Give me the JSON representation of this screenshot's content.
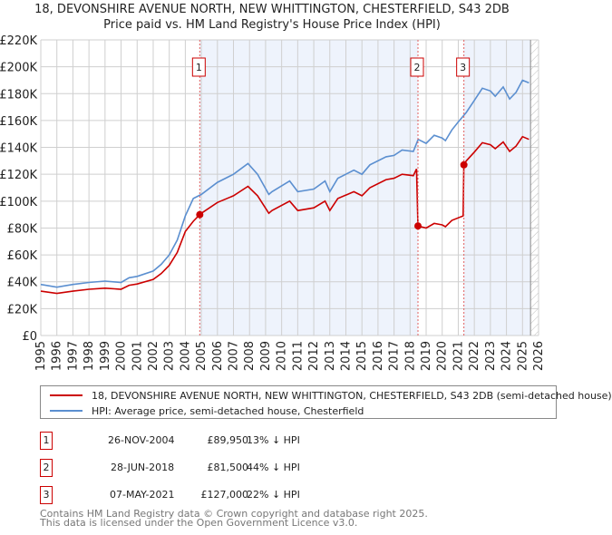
{
  "title": "18, DEVONSHIRE AVENUE NORTH, NEW WHITTINGTON, CHESTERFIELD, S43 2DB",
  "subtitle": "Price paid vs. HM Land Registry's House Price Index (HPI)",
  "colors": {
    "price": "#cc0000",
    "hpi": "#5b8fd0",
    "shade": "#eef3fc"
  },
  "chart_data": {
    "type": "line",
    "xlim": [
      1995,
      2026
    ],
    "ylim": [
      0,
      220000
    ],
    "xticks": [
      1995,
      1996,
      1997,
      1998,
      1999,
      2000,
      2001,
      2002,
      2003,
      2004,
      2005,
      2006,
      2007,
      2008,
      2009,
      2010,
      2011,
      2012,
      2013,
      2014,
      2015,
      2016,
      2017,
      2018,
      2019,
      2020,
      2021,
      2022,
      2023,
      2024,
      2025,
      2026
    ],
    "yticks": [
      {
        "v": 0,
        "label": "£0"
      },
      {
        "v": 20000,
        "label": "£20K"
      },
      {
        "v": 40000,
        "label": "£40K"
      },
      {
        "v": 60000,
        "label": "£60K"
      },
      {
        "v": 80000,
        "label": "£80K"
      },
      {
        "v": 100000,
        "label": "£100K"
      },
      {
        "v": 120000,
        "label": "£120K"
      },
      {
        "v": 140000,
        "label": "£140K"
      },
      {
        "v": 160000,
        "label": "£160K"
      },
      {
        "v": 180000,
        "label": "£180K"
      },
      {
        "v": 200000,
        "label": "£200K"
      },
      {
        "v": 220000,
        "label": "£220K"
      }
    ],
    "grid": true,
    "forecast_hatch_from": 2025.5,
    "series": [
      {
        "name": "18, DEVONSHIRE AVENUE NORTH, NEW WHITTINGTON, CHESTERFIELD, S43 2DB (semi-detached house)",
        "key": "price",
        "x": [
          1995,
          1996,
          1997,
          1998,
          1999,
          2000,
          2000.5,
          2001,
          2002,
          2002.5,
          2003,
          2003.5,
          2004,
          2004.5,
          2004.9,
          2005,
          2006,
          2007,
          2007.9,
          2008.5,
          2009.2,
          2009.4,
          2010.5,
          2011,
          2012,
          2012.7,
          2013,
          2013.5,
          2014.5,
          2015,
          2015.5,
          2016.5,
          2017,
          2017.5,
          2018.2,
          2018.4,
          2018.49,
          2019,
          2019.5,
          2020,
          2020.2,
          2020.6,
          2021.3,
          2021.35,
          2021.5,
          2022,
          2022.5,
          2023,
          2023.3,
          2023.8,
          2024.2,
          2024.6,
          2025,
          2025.4
        ],
        "y": [
          33000,
          31300,
          33000,
          34400,
          35200,
          34400,
          37400,
          38300,
          41800,
          46100,
          52200,
          61800,
          77400,
          85000,
          89950,
          91000,
          99000,
          104000,
          111000,
          104000,
          91000,
          93000,
          100000,
          93000,
          95000,
          100000,
          93000,
          102000,
          107000,
          104000,
          110000,
          116000,
          117000,
          120000,
          119000,
          124000,
          81500,
          80000,
          83400,
          82300,
          81000,
          85700,
          89000,
          127000,
          130000,
          136500,
          143500,
          142000,
          139000,
          144000,
          137000,
          141000,
          148000,
          146000
        ]
      },
      {
        "name": "HPI: Average price, semi-detached house, Chesterfield",
        "key": "hpi",
        "x": [
          1995,
          1996,
          1997,
          1998,
          1999,
          2000,
          2000.5,
          2001,
          2002,
          2002.5,
          2003,
          2003.5,
          2004,
          2004.5,
          2005,
          2006,
          2007,
          2007.9,
          2008.5,
          2009.2,
          2009.4,
          2010.5,
          2011,
          2012,
          2012.7,
          2013,
          2013.5,
          2014.5,
          2015,
          2015.5,
          2016.5,
          2017,
          2017.5,
          2018.2,
          2018.5,
          2019,
          2019.5,
          2020,
          2020.2,
          2020.6,
          2021,
          2021.5,
          2022,
          2022.5,
          2023,
          2023.3,
          2023.8,
          2024.2,
          2024.6,
          2025,
          2025.4
        ],
        "y": [
          38000,
          36000,
          38000,
          39500,
          40500,
          39500,
          43000,
          44000,
          48000,
          53000,
          60000,
          71000,
          89000,
          102000,
          105000,
          114000,
          120000,
          128000,
          120000,
          105000,
          107000,
          115000,
          107000,
          109000,
          115000,
          107000,
          117000,
          123000,
          120000,
          127000,
          133000,
          134000,
          138000,
          137000,
          146000,
          143000,
          149000,
          147000,
          145000,
          153000,
          159000,
          166000,
          175000,
          184000,
          182000,
          178000,
          185000,
          176000,
          181000,
          190000,
          188000
        ]
      }
    ],
    "sales": [
      {
        "id": "1",
        "x": 2004.9,
        "price": 89950
      },
      {
        "id": "2",
        "x": 2018.49,
        "price": 81500
      },
      {
        "id": "3",
        "x": 2021.35,
        "price": 127000
      }
    ]
  },
  "legend": {
    "price_label": "18, DEVONSHIRE AVENUE NORTH, NEW WHITTINGTON, CHESTERFIELD, S43 2DB (semi-detached house)",
    "hpi_label": "HPI: Average price, semi-detached house, Chesterfield"
  },
  "transactions": [
    {
      "id": "1",
      "date": "26-NOV-2004",
      "price": "£89,950",
      "hpi": "13% ↓ HPI"
    },
    {
      "id": "2",
      "date": "28-JUN-2018",
      "price": "£81,500",
      "hpi": "44% ↓ HPI"
    },
    {
      "id": "3",
      "date": "07-MAY-2021",
      "price": "£127,000",
      "hpi": "22% ↓ HPI"
    }
  ],
  "footer": {
    "line1": "Contains HM Land Registry data © Crown copyright and database right 2025.",
    "line2": "This data is licensed under the Open Government Licence v3.0."
  }
}
